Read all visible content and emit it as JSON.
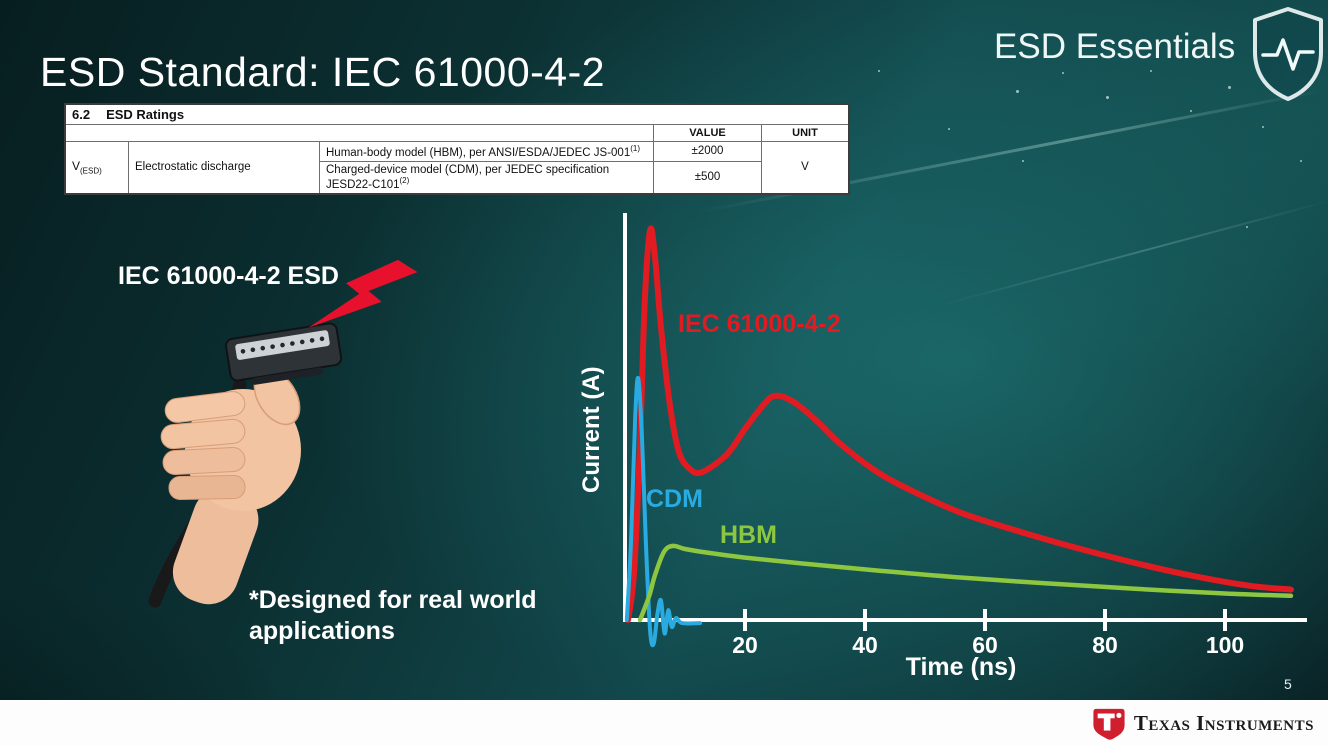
{
  "slide": {
    "title": "ESD Standard: IEC 61000-4-2",
    "program": "ESD Essentials",
    "page_number": "5"
  },
  "ratings_table": {
    "section_number": "6.2",
    "section_title": "ESD Ratings",
    "headers": {
      "value": "VALUE",
      "unit": "UNIT"
    },
    "parameter": {
      "symbol": "V",
      "symbol_sub": "(ESD)",
      "name": "Electrostatic discharge"
    },
    "rows": [
      {
        "description": "Human-body model (HBM), per ANSI/ESDA/JEDEC JS-001",
        "footnote": "(1)",
        "value": "±2000"
      },
      {
        "description": "Charged-device model (CDM), per JEDEC specification JESD22-C101",
        "footnote": "(2)",
        "value": "±500"
      }
    ],
    "unit": "V"
  },
  "illustration": {
    "caption": "IEC 61000-4-2 ESD",
    "note": "*Designed for real world applications"
  },
  "chart_data": {
    "type": "line",
    "title": "",
    "xlabel": "Time (ns)",
    "ylabel": "Current (A)",
    "xlim": [
      0,
      112
    ],
    "ylim": [
      -1,
      10.5
    ],
    "xticks": [
      20,
      40,
      60,
      80,
      100
    ],
    "grid": false,
    "legend": "inline-labels",
    "series": [
      {
        "name": "IEC 61000-4-2",
        "color": "#e11b22",
        "stroke_width": 6,
        "points": [
          [
            0.5,
            0
          ],
          [
            1.5,
            1.2
          ],
          [
            2.5,
            4.5
          ],
          [
            3.3,
            8.2
          ],
          [
            4.2,
            10
          ],
          [
            5,
            9.3
          ],
          [
            6,
            7.5
          ],
          [
            7.5,
            5.5
          ],
          [
            9,
            4.3
          ],
          [
            11,
            3.85
          ],
          [
            13,
            3.8
          ],
          [
            17,
            4.25
          ],
          [
            20,
            4.9
          ],
          [
            23,
            5.5
          ],
          [
            25,
            5.75
          ],
          [
            28,
            5.6
          ],
          [
            32,
            5.1
          ],
          [
            36,
            4.5
          ],
          [
            42,
            3.8
          ],
          [
            48,
            3.3
          ],
          [
            56,
            2.75
          ],
          [
            64,
            2.35
          ],
          [
            74,
            1.9
          ],
          [
            84,
            1.5
          ],
          [
            94,
            1.15
          ],
          [
            104,
            0.88
          ],
          [
            111,
            0.78
          ]
        ]
      },
      {
        "name": "CDM",
        "color": "#29abe2",
        "stroke_width": 4,
        "points": [
          [
            0.3,
            0
          ],
          [
            1,
            2.0
          ],
          [
            1.7,
            5.2
          ],
          [
            2.2,
            6.2
          ],
          [
            2.8,
            4.8
          ],
          [
            3.5,
            1.9
          ],
          [
            4.2,
            -0.3
          ],
          [
            4.8,
            -0.6
          ],
          [
            5.4,
            0.15
          ],
          [
            6.0,
            0.5
          ],
          [
            6.6,
            -0.35
          ],
          [
            7.2,
            0.25
          ],
          [
            7.8,
            -0.18
          ],
          [
            8.5,
            0.05
          ],
          [
            9.5,
            -0.08
          ],
          [
            12.5,
            -0.08
          ]
        ]
      },
      {
        "name": "HBM",
        "color": "#8dc63f",
        "stroke_width": 4.5,
        "points": [
          [
            2.5,
            0
          ],
          [
            4,
            0.6
          ],
          [
            5,
            1.15
          ],
          [
            6.5,
            1.75
          ],
          [
            8,
            1.9
          ],
          [
            10,
            1.82
          ],
          [
            14,
            1.72
          ],
          [
            20,
            1.6
          ],
          [
            30,
            1.44
          ],
          [
            42,
            1.27
          ],
          [
            55,
            1.1
          ],
          [
            70,
            0.94
          ],
          [
            85,
            0.8
          ],
          [
            100,
            0.68
          ],
          [
            111,
            0.62
          ]
        ]
      }
    ]
  },
  "footer": {
    "brand": "Texas Instruments"
  },
  "colors": {
    "iec_red": "#e11b22",
    "cdm_blue": "#29abe2",
    "hbm_green": "#8dc63f",
    "bolt_red": "#e8112d",
    "brand_red": "#cf1f2e"
  }
}
